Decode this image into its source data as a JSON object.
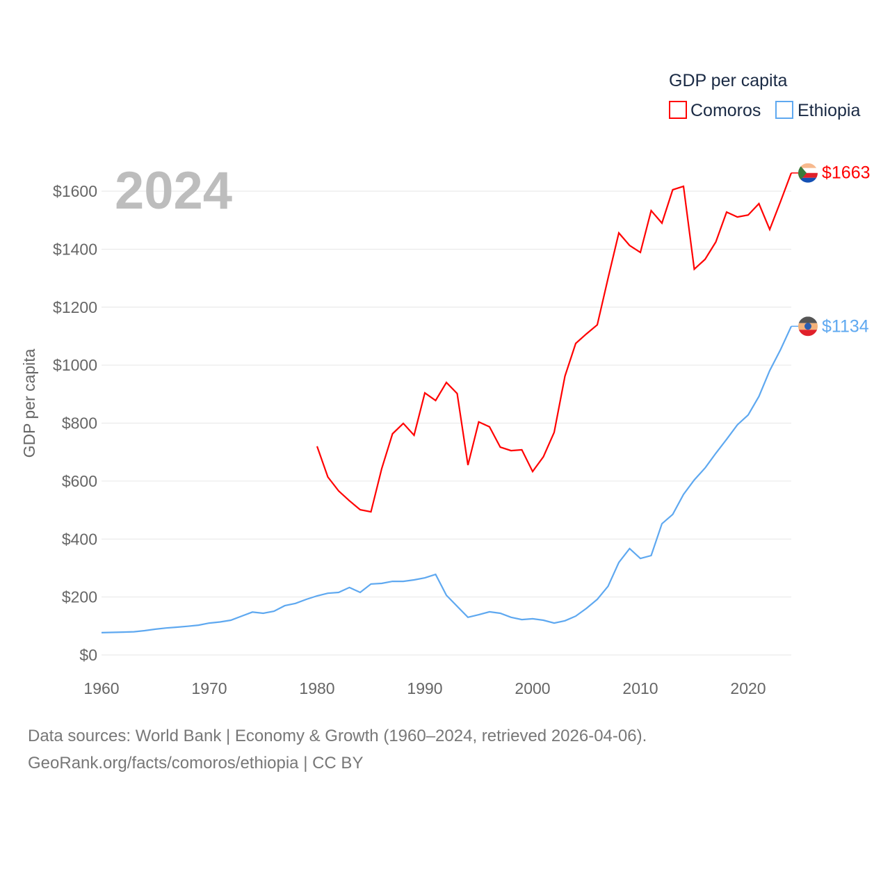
{
  "chart_data": {
    "type": "line",
    "title": "GDP per capita",
    "year_label": "2024",
    "ylabel": "GDP per capita",
    "xlabel": "",
    "xlim": [
      1960,
      2024
    ],
    "ylim": [
      0,
      1700
    ],
    "x_ticks": [
      "1960",
      "1970",
      "1980",
      "1990",
      "2000",
      "2010",
      "2020"
    ],
    "y_ticks": [
      "$0",
      "$200",
      "$400",
      "$600",
      "$800",
      "$1000",
      "$1200",
      "$1400",
      "$1600"
    ],
    "legend_title": "GDP per capita",
    "legend_position": "top-right",
    "grid": true,
    "series": [
      {
        "name": "Comoros",
        "color": "#ff0000",
        "end_label": "$1663",
        "start_year": 1980,
        "values": [
          720,
          614,
          566,
          532,
          501,
          494,
          643,
          763,
          799,
          758,
          904,
          878,
          940,
          902,
          655,
          804,
          787,
          717,
          705,
          708,
          633,
          684,
          768,
          962,
          1075,
          1108,
          1139,
          1300,
          1456,
          1413,
          1389,
          1533,
          1490,
          1605,
          1617,
          1331,
          1365,
          1425,
          1528,
          1511,
          1518,
          1557,
          1468,
          1564,
          1663
        ]
      },
      {
        "name": "Ethiopia",
        "color": "#5ea8f0",
        "end_label": "$1134",
        "start_year": 1960,
        "values": [
          77,
          78,
          79,
          80,
          84,
          89,
          93,
          96,
          99,
          103,
          110,
          114,
          120,
          134,
          148,
          144,
          151,
          170,
          178,
          192,
          204,
          213,
          216,
          233,
          216,
          245,
          247,
          254,
          254,
          259,
          266,
          278,
          206,
          168,
          130,
          139,
          149,
          144,
          130,
          122,
          125,
          120,
          110,
          118,
          134,
          161,
          192,
          237,
          319,
          367,
          333,
          343,
          453,
          485,
          554,
          604,
          645,
          696,
          744,
          794,
          828,
          892,
          981,
          1053,
          1134
        ]
      }
    ]
  },
  "footer": {
    "line1": "Data sources: World Bank | Economy & Growth (1960–2024, retrieved 2026-04-06).",
    "line2": "GeoRank.org/facts/comoros/ethiopia | CC BY"
  }
}
